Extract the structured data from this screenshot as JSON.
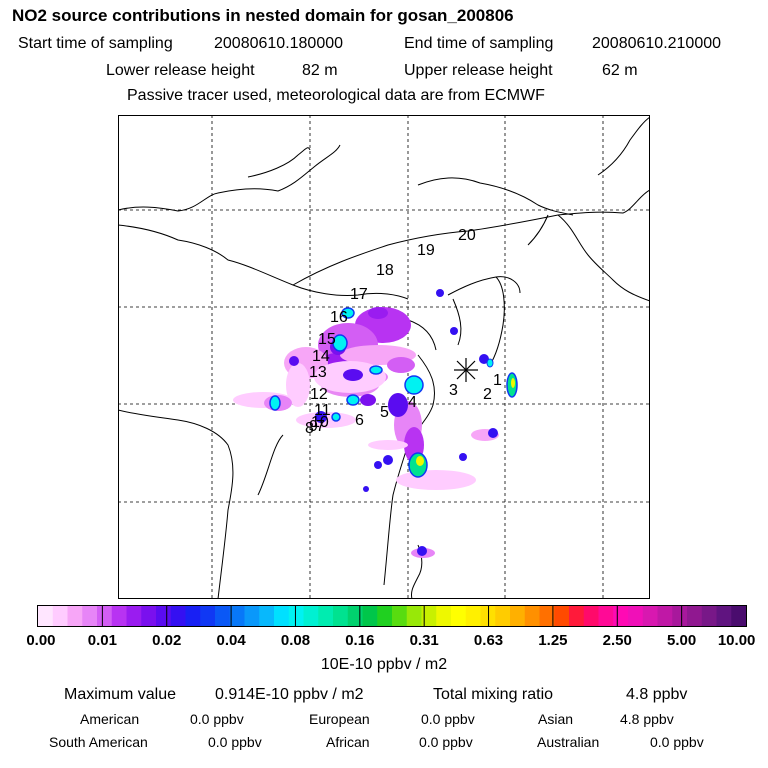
{
  "header": {
    "title": "NO2 source contributions in nested domain for gosan_200806",
    "start_label": "Start time of sampling",
    "start_value": "20080610.180000",
    "end_label": "End time of sampling",
    "end_value": "20080610.210000",
    "lower_label": "Lower release height",
    "lower_value": "82 m",
    "upper_label": "Upper release height",
    "upper_value": "62 m",
    "note": "Passive tracer used, meteorological data are from ECMWF"
  },
  "map": {
    "track_labels": [
      "1",
      "2",
      "3",
      "4",
      "5",
      "6",
      "7",
      "8",
      "9",
      "10",
      "11",
      "12",
      "13",
      "14",
      "15",
      "16",
      "17",
      "18",
      "19",
      "20"
    ],
    "receptor_marker": "asterisk"
  },
  "legend": {
    "ticks": [
      "0.00",
      "0.01",
      "0.02",
      "0.04",
      "0.08",
      "0.16",
      "0.31",
      "0.63",
      "1.25",
      "2.50",
      "5.00",
      "10.00"
    ],
    "colors": [
      "#ffe6ff",
      "#ffccff",
      "#f7a6f7",
      "#e785f7",
      "#d35ef4",
      "#b833f2",
      "#9a1cf0",
      "#7a10ee",
      "#5a0cf0",
      "#3410f2",
      "#1820f4",
      "#1038f4",
      "#0a58f6",
      "#0878f8",
      "#0a98fa",
      "#08b8fc",
      "#00e0ff",
      "#00f2f2",
      "#00f0d2",
      "#00ecb0",
      "#00e290",
      "#00d26e",
      "#00c64a",
      "#20d020",
      "#58dc10",
      "#98e808",
      "#c8f000",
      "#eef800",
      "#ffff00",
      "#fff000",
      "#ffe000",
      "#ffcc00",
      "#ffb000",
      "#ff9000",
      "#ff7000",
      "#ff4a00",
      "#ff1a3a",
      "#ff0a6a",
      "#ff0a96",
      "#ff0ab4",
      "#f010b8",
      "#d818b0",
      "#c018a6",
      "#a8189c",
      "#901890",
      "#781888",
      "#601480",
      "#4a0c6e"
    ],
    "unit": "10E-10 ppbv / m2"
  },
  "stats": {
    "max_label": "Maximum value",
    "max_value": "0.914E-10 ppbv / m2",
    "total_label": "Total mixing ratio",
    "total_value": "4.8 ppbv",
    "regions": [
      {
        "name": "American",
        "value": "0.0 ppbv"
      },
      {
        "name": "European",
        "value": "0.0 ppbv"
      },
      {
        "name": "Asian",
        "value": "4.8 ppbv"
      },
      {
        "name": "South American",
        "value": "0.0 ppbv"
      },
      {
        "name": "African",
        "value": "0.0 ppbv"
      },
      {
        "name": "Australian",
        "value": "0.0 ppbv"
      }
    ]
  }
}
